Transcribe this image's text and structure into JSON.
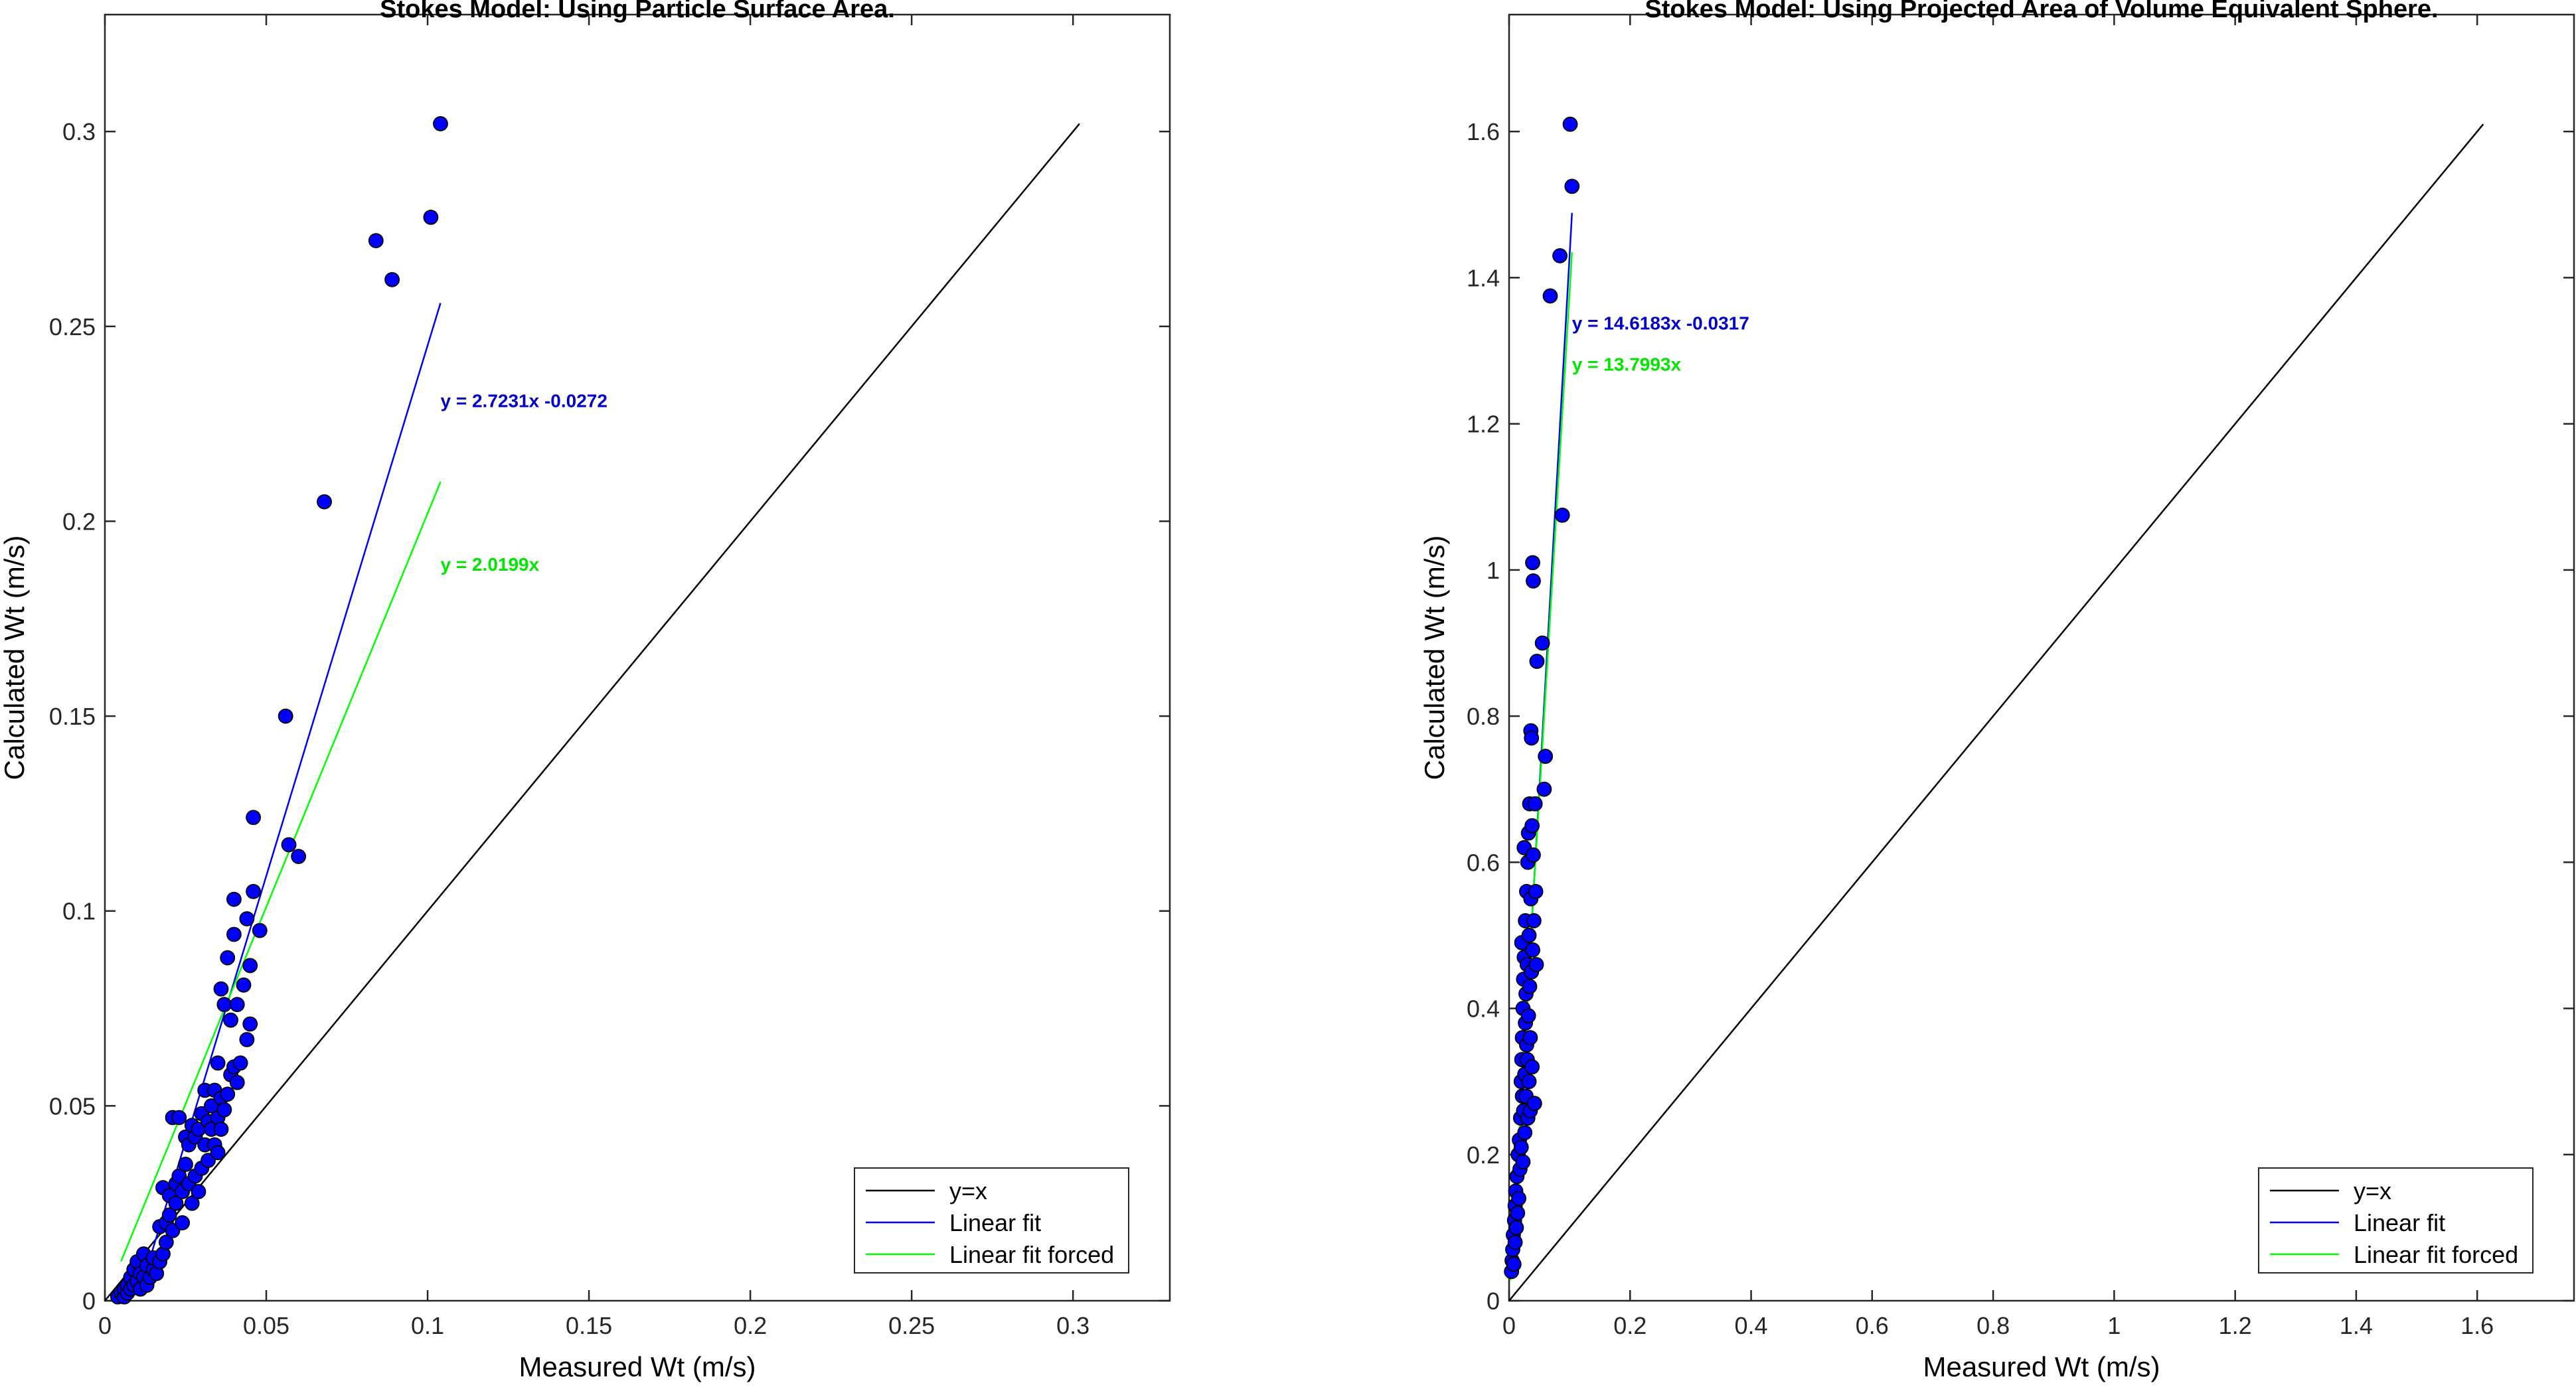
{
  "chart_data": [
    {
      "type": "scatter",
      "title": "Stokes Model: Using Particle Surface Area.",
      "xlabel": "Measured Wt (m/s)",
      "ylabel": "Calculated Wt (m/s)",
      "xlim": [
        0,
        0.33
      ],
      "ylim": [
        0,
        0.33
      ],
      "xticks": [
        0,
        0.05,
        0.1,
        0.15,
        0.2,
        0.25,
        0.3
      ],
      "xtick_labels": [
        "0",
        "0.05",
        "0.1",
        "0.15",
        "0.2",
        "0.25",
        "0.3"
      ],
      "yticks": [
        0,
        0.05,
        0.1,
        0.15,
        0.2,
        0.25,
        0.3
      ],
      "ytick_labels": [
        "0",
        "0.05",
        "0.1",
        "0.15",
        "0.2",
        "0.25",
        "0.3"
      ],
      "grid": false,
      "legend_position": "bottom-right",
      "points": [
        [
          0.004,
          0.001
        ],
        [
          0.005,
          0.002
        ],
        [
          0.006,
          0.001
        ],
        [
          0.006,
          0.003
        ],
        [
          0.007,
          0.002
        ],
        [
          0.007,
          0.004
        ],
        [
          0.008,
          0.003
        ],
        [
          0.008,
          0.006
        ],
        [
          0.009,
          0.004
        ],
        [
          0.009,
          0.008
        ],
        [
          0.01,
          0.005
        ],
        [
          0.01,
          0.01
        ],
        [
          0.011,
          0.003
        ],
        [
          0.011,
          0.007
        ],
        [
          0.012,
          0.006
        ],
        [
          0.012,
          0.012
        ],
        [
          0.013,
          0.004
        ],
        [
          0.013,
          0.009
        ],
        [
          0.014,
          0.006
        ],
        [
          0.015,
          0.008
        ],
        [
          0.015,
          0.011
        ],
        [
          0.016,
          0.007
        ],
        [
          0.017,
          0.01
        ],
        [
          0.017,
          0.019
        ],
        [
          0.018,
          0.029
        ],
        [
          0.018,
          0.012
        ],
        [
          0.019,
          0.02
        ],
        [
          0.019,
          0.015
        ],
        [
          0.02,
          0.022
        ],
        [
          0.02,
          0.027
        ],
        [
          0.021,
          0.018
        ],
        [
          0.021,
          0.047
        ],
        [
          0.022,
          0.025
        ],
        [
          0.022,
          0.03
        ],
        [
          0.023,
          0.047
        ],
        [
          0.023,
          0.032
        ],
        [
          0.024,
          0.02
        ],
        [
          0.024,
          0.028
        ],
        [
          0.025,
          0.035
        ],
        [
          0.025,
          0.042
        ],
        [
          0.026,
          0.03
        ],
        [
          0.026,
          0.04
        ],
        [
          0.027,
          0.025
        ],
        [
          0.027,
          0.045
        ],
        [
          0.028,
          0.032
        ],
        [
          0.028,
          0.042
        ],
        [
          0.029,
          0.028
        ],
        [
          0.029,
          0.044
        ],
        [
          0.03,
          0.034
        ],
        [
          0.03,
          0.048
        ],
        [
          0.031,
          0.04
        ],
        [
          0.031,
          0.054
        ],
        [
          0.032,
          0.036
        ],
        [
          0.032,
          0.046
        ],
        [
          0.033,
          0.044
        ],
        [
          0.033,
          0.05
        ],
        [
          0.034,
          0.04
        ],
        [
          0.034,
          0.054
        ],
        [
          0.035,
          0.038
        ],
        [
          0.035,
          0.047
        ],
        [
          0.035,
          0.061
        ],
        [
          0.036,
          0.044
        ],
        [
          0.036,
          0.052
        ],
        [
          0.036,
          0.08
        ],
        [
          0.037,
          0.049
        ],
        [
          0.037,
          0.076
        ],
        [
          0.038,
          0.053
        ],
        [
          0.038,
          0.088
        ],
        [
          0.039,
          0.058
        ],
        [
          0.039,
          0.072
        ],
        [
          0.04,
          0.06
        ],
        [
          0.04,
          0.094
        ],
        [
          0.04,
          0.103
        ],
        [
          0.041,
          0.056
        ],
        [
          0.041,
          0.076
        ],
        [
          0.042,
          0.061
        ],
        [
          0.043,
          0.081
        ],
        [
          0.044,
          0.098
        ],
        [
          0.044,
          0.067
        ],
        [
          0.045,
          0.071
        ],
        [
          0.045,
          0.086
        ],
        [
          0.046,
          0.105
        ],
        [
          0.046,
          0.124
        ],
        [
          0.048,
          0.095
        ],
        [
          0.056,
          0.15
        ],
        [
          0.057,
          0.117
        ],
        [
          0.06,
          0.114
        ],
        [
          0.068,
          0.205
        ],
        [
          0.084,
          0.272
        ],
        [
          0.089,
          0.262
        ],
        [
          0.101,
          0.278
        ],
        [
          0.104,
          0.302
        ]
      ],
      "lines": {
        "identity": {
          "x": [
            0,
            0.302
          ],
          "y": [
            0,
            0.302
          ]
        },
        "linear_fit": {
          "x": [
            0.012,
            0.104
          ],
          "y": [
            0.0055,
            0.256
          ]
        },
        "linear_fit_forced": {
          "x": [
            0.005,
            0.104
          ],
          "y": [
            0.0101,
            0.2101
          ]
        }
      },
      "fit_annotations": [
        {
          "text": "y = 2.7231x -0.0272",
          "color": "#0000c8",
          "x": 0.104,
          "y": 0.231
        },
        {
          "text": "y = 2.0199x",
          "color": "#00e600",
          "x": 0.104,
          "y": 0.189
        }
      ],
      "legend": [
        {
          "label": "y=x",
          "color": "#000000"
        },
        {
          "label": "Linear fit",
          "color": "#0000ff"
        },
        {
          "label": "Linear fit forced",
          "color": "#00ff00"
        }
      ]
    },
    {
      "type": "scatter",
      "title": "Stokes Model: Using Projected Area of Volume Equivalent Sphere.",
      "xlabel": "Measured Wt (m/s)",
      "ylabel": "Calculated Wt (m/s)",
      "xlim": [
        0,
        1.76
      ],
      "ylim": [
        0,
        1.76
      ],
      "xticks": [
        0,
        0.2,
        0.4,
        0.6,
        0.8,
        1,
        1.2,
        1.4,
        1.6
      ],
      "xtick_labels": [
        "0",
        "0.2",
        "0.4",
        "0.6",
        "0.8",
        "1",
        "1.2",
        "1.4",
        "1.6"
      ],
      "yticks": [
        0,
        0.2,
        0.4,
        0.6,
        0.8,
        1,
        1.2,
        1.4,
        1.6
      ],
      "ytick_labels": [
        "0",
        "0.2",
        "0.4",
        "0.6",
        "0.8",
        "1",
        "1.2",
        "1.4",
        "1.6"
      ],
      "grid": false,
      "legend_position": "bottom-right",
      "points": [
        [
          0.004,
          0.04
        ],
        [
          0.005,
          0.055
        ],
        [
          0.006,
          0.07
        ],
        [
          0.007,
          0.09
        ],
        [
          0.008,
          0.05
        ],
        [
          0.009,
          0.11
        ],
        [
          0.01,
          0.13
        ],
        [
          0.01,
          0.08
        ],
        [
          0.011,
          0.15
        ],
        [
          0.012,
          0.1
        ],
        [
          0.013,
          0.17
        ],
        [
          0.014,
          0.12
        ],
        [
          0.015,
          0.2
        ],
        [
          0.016,
          0.14
        ],
        [
          0.017,
          0.22
        ],
        [
          0.018,
          0.18
        ],
        [
          0.019,
          0.25
        ],
        [
          0.02,
          0.3
        ],
        [
          0.02,
          0.21
        ],
        [
          0.021,
          0.33
        ],
        [
          0.021,
          0.49
        ],
        [
          0.022,
          0.28
        ],
        [
          0.022,
          0.36
        ],
        [
          0.023,
          0.4
        ],
        [
          0.023,
          0.19
        ],
        [
          0.024,
          0.44
        ],
        [
          0.024,
          0.26
        ],
        [
          0.025,
          0.47
        ],
        [
          0.025,
          0.62
        ],
        [
          0.026,
          0.31
        ],
        [
          0.026,
          0.23
        ],
        [
          0.027,
          0.38
        ],
        [
          0.027,
          0.52
        ],
        [
          0.028,
          0.28
        ],
        [
          0.028,
          0.42
        ],
        [
          0.029,
          0.35
        ],
        [
          0.029,
          0.56
        ],
        [
          0.03,
          0.46
        ],
        [
          0.03,
          0.33
        ],
        [
          0.031,
          0.6
        ],
        [
          0.031,
          0.25
        ],
        [
          0.032,
          0.39
        ],
        [
          0.032,
          0.64
        ],
        [
          0.033,
          0.3
        ],
        [
          0.033,
          0.5
        ],
        [
          0.034,
          0.68
        ],
        [
          0.034,
          0.43
        ],
        [
          0.035,
          0.26
        ],
        [
          0.035,
          0.36
        ],
        [
          0.036,
          0.78
        ],
        [
          0.036,
          0.55
        ],
        [
          0.037,
          0.77
        ],
        [
          0.037,
          0.45
        ],
        [
          0.038,
          0.65
        ],
        [
          0.038,
          0.32
        ],
        [
          0.039,
          1.01
        ],
        [
          0.039,
          0.48
        ],
        [
          0.04,
          0.985
        ],
        [
          0.04,
          0.61
        ],
        [
          0.041,
          0.52
        ],
        [
          0.042,
          0.27
        ],
        [
          0.043,
          0.68
        ],
        [
          0.044,
          0.56
        ],
        [
          0.045,
          0.46
        ],
        [
          0.046,
          0.875
        ],
        [
          0.055,
          0.9
        ],
        [
          0.058,
          0.7
        ],
        [
          0.06,
          0.745
        ],
        [
          0.068,
          1.375
        ],
        [
          0.084,
          1.43
        ],
        [
          0.088,
          1.075
        ],
        [
          0.101,
          1.61
        ],
        [
          0.104,
          1.525
        ]
      ],
      "lines": {
        "identity": {
          "x": [
            0,
            1.61
          ],
          "y": [
            0,
            1.61
          ]
        },
        "linear_fit": {
          "x": [
            0.005,
            0.104
          ],
          "y": [
            0.0414,
            1.4886
          ]
        },
        "linear_fit_forced": {
          "x": [
            0.002,
            0.104
          ],
          "y": [
            0.0276,
            1.4351
          ]
        }
      },
      "fit_annotations": [
        {
          "text": "y = 14.6183x -0.0317",
          "color": "#0000c8",
          "x": 0.104,
          "y": 1.338
        },
        {
          "text": "y = 13.7993x",
          "color": "#00e600",
          "x": 0.104,
          "y": 1.282
        }
      ],
      "legend": [
        {
          "label": "y=x",
          "color": "#000000"
        },
        {
          "label": "Linear fit",
          "color": "#0000ff"
        },
        {
          "label": "Linear fit forced",
          "color": "#00ff00"
        }
      ]
    }
  ]
}
